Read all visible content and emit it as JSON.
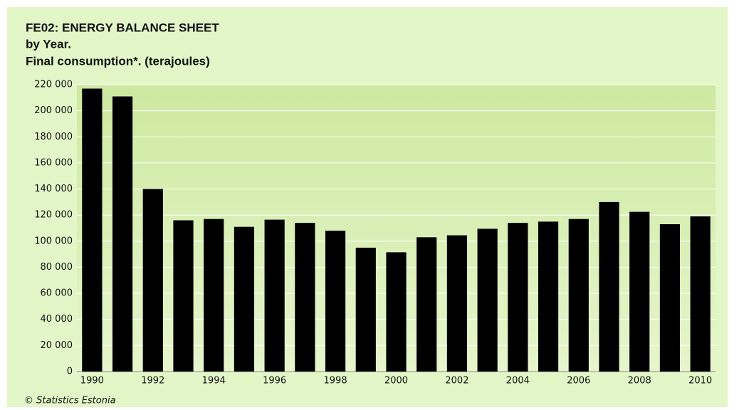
{
  "chart_data": {
    "type": "bar",
    "title": "FE02: ENERGY BALANCE SHEET",
    "subtitle": "by Year.",
    "measure": "Final consumption*. (terajoules)",
    "source": "© Statistics Estonia",
    "categories": [
      "1990",
      null,
      "1992",
      null,
      "1994",
      null,
      "1996",
      null,
      "1998",
      null,
      "2000",
      null,
      "2002",
      null,
      "2004",
      null,
      "2006",
      null,
      "2008",
      null,
      "2010"
    ],
    "values": [
      217000,
      211000,
      140000,
      116000,
      117000,
      111000,
      116500,
      114000,
      108000,
      95000,
      91500,
      103000,
      104500,
      109500,
      114000,
      115000,
      117000,
      130000,
      122500,
      113000,
      119000
    ],
    "color": "#000000",
    "ylim": [
      0,
      220000
    ],
    "yticks": [
      0,
      {
        "value": 20000,
        "label": "20 000"
      },
      {
        "value": 40000,
        "label": "40 000"
      },
      {
        "value": 60000,
        "label": "60 000"
      },
      {
        "value": 80000,
        "label": "80 000"
      },
      {
        "value": 100000,
        "label": "100 000"
      },
      {
        "value": 120000,
        "label": "120 000"
      },
      {
        "value": 140000,
        "label": "140 000"
      },
      {
        "value": 160000,
        "label": "160 000"
      },
      {
        "value": 180000,
        "label": "180 000"
      },
      {
        "value": 200000,
        "label": "200 000"
      },
      {
        "value": 220000,
        "label": "220 000"
      }
    ],
    "grid": true
  }
}
